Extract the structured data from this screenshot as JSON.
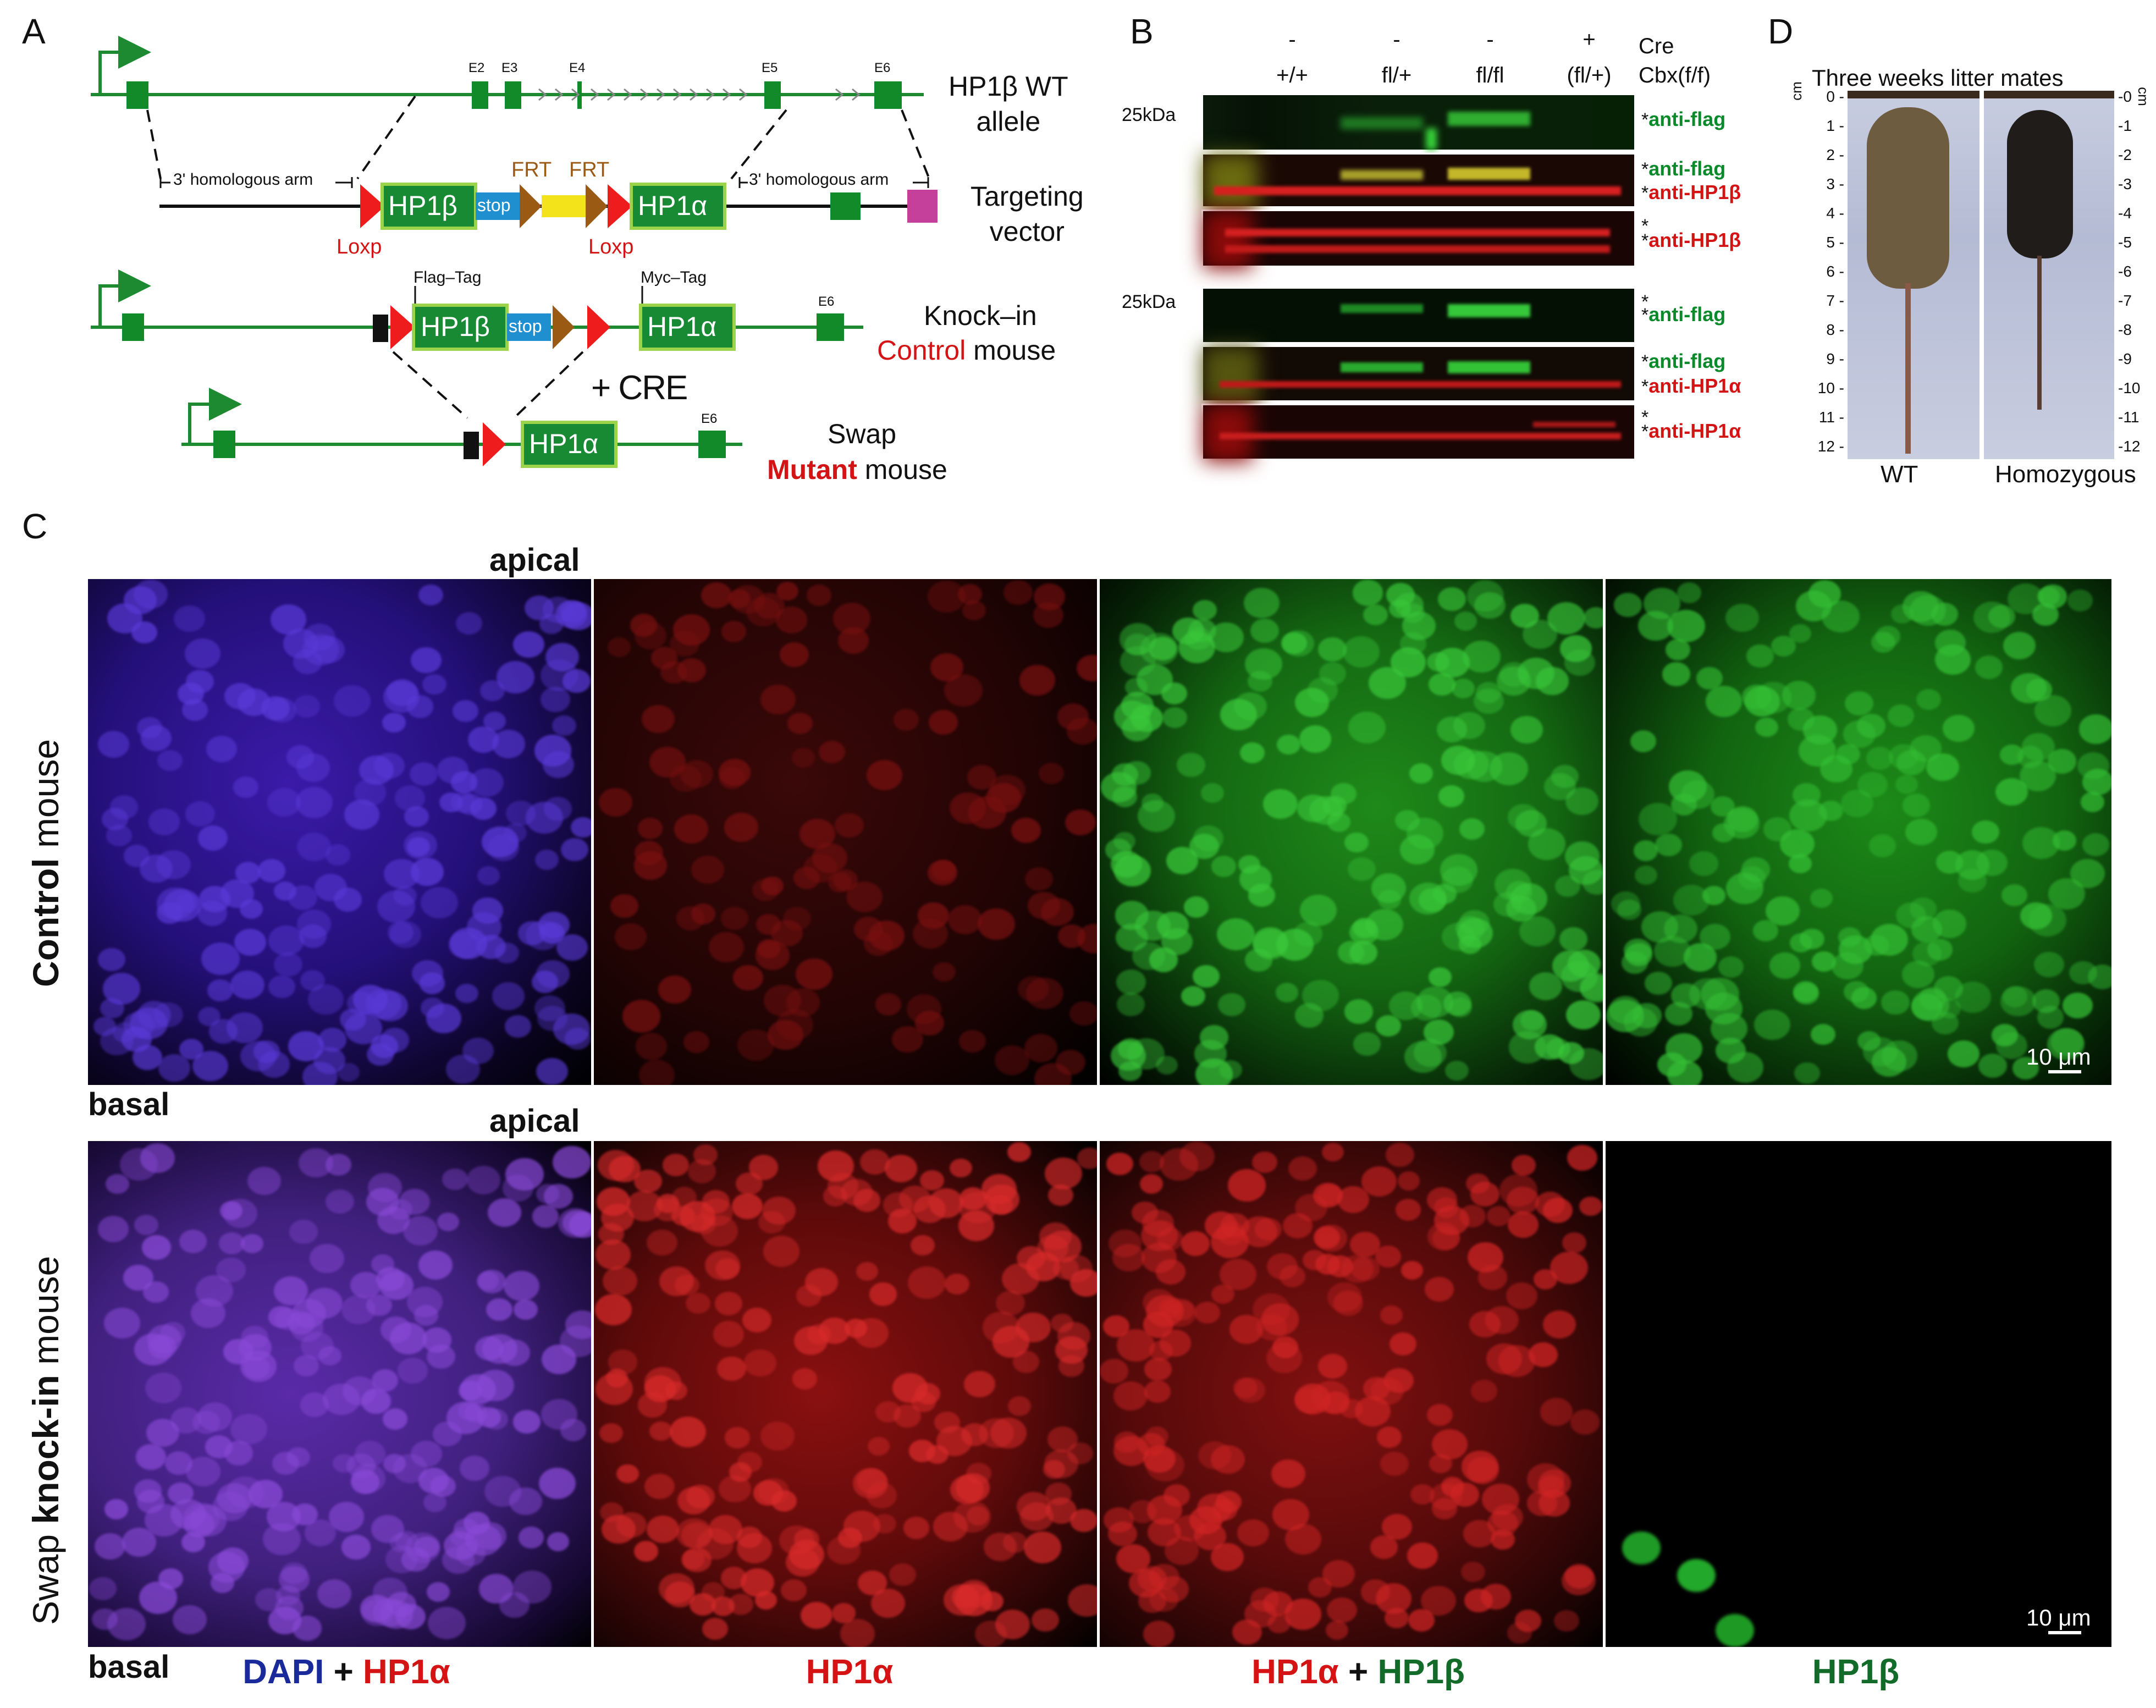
{
  "panel_a": {
    "label": "A",
    "wt_allele": "HP1β WT\nallele",
    "exons": [
      "E2",
      "E3",
      "E4",
      "E5",
      "E6"
    ],
    "homology_left": "3' homologous arm",
    "homology_right": "3' homologous arm",
    "frt1": "FRT",
    "frt2": "FRT",
    "loxp1": "Loxp",
    "loxp2": "Loxp",
    "hp1b": "HP1β",
    "hp1a": "HP1α",
    "stop": "stop",
    "targeting": "Targeting\nvector",
    "flag_tag": "Flag–Tag",
    "myc_tag": "Myc–Tag",
    "e6": "E6",
    "knockin_line1": "Knock–in",
    "control_word": "Control",
    "mouse_word": "mouse",
    "cre": "+ CRE",
    "swap_word": "Swap",
    "mutant_word": "Mutant",
    "colors": {
      "gene": "#1d8a32",
      "exon": "#128a2a",
      "box": "#188a34",
      "stop": "#1f8fd0",
      "loxp": "#ee1c1c",
      "frt": "#9b5a14",
      "neo": "#f2e31a",
      "neg": "#c4409a"
    }
  },
  "panel_b": {
    "label": "B",
    "row_cre": "Cre",
    "row_cbx": "Cbx(f/f)",
    "cre_values": [
      "-",
      "-",
      "-",
      "+"
    ],
    "genotypes": [
      "+/+",
      "fl/+",
      "fl/fl",
      "(fl/+)"
    ],
    "mw1": "25kDa",
    "mw2": "25kDa",
    "star": "*",
    "blots": [
      {
        "labels": [
          {
            "t": "anti-flag",
            "c": "green"
          }
        ]
      },
      {
        "labels": [
          {
            "t": "anti-flag",
            "c": "green"
          },
          {
            "t": "anti-HP1β",
            "c": "red"
          }
        ]
      },
      {
        "labels": [
          {
            "t": "anti-HP1β",
            "c": "red"
          }
        ]
      },
      {
        "labels": [
          {
            "t": "anti-flag",
            "c": "green"
          }
        ]
      },
      {
        "labels": [
          {
            "t": "anti-flag",
            "c": "green"
          },
          {
            "t": "anti-HP1α",
            "c": "red"
          }
        ]
      },
      {
        "labels": [
          {
            "t": "anti-HP1α",
            "c": "red"
          }
        ]
      }
    ]
  },
  "panel_c": {
    "label": "C",
    "apical1": "apical",
    "apical2": "apical",
    "basal1": "basal",
    "basal2": "basal",
    "row1_bold": "Control",
    "row1_rest": " mouse",
    "row2_pre": "Swap ",
    "row2_bold": "knock-in",
    "row2_rest": " mouse",
    "scalebar1": "10 μm",
    "scalebar2": "10 μm",
    "col1_a": "DAPI",
    "col1_plus": " + ",
    "col1_b": "HP1α",
    "col2": "HP1α",
    "col3_a": "HP1α",
    "col3_plus": " + ",
    "col3_b": "HP1β",
    "col4": "HP1β"
  },
  "panel_d": {
    "label": "D",
    "title": "Three weeks litter mates",
    "unit": "cm",
    "ruler": [
      "0",
      "1",
      "2",
      "3",
      "4",
      "5",
      "6",
      "7",
      "8",
      "9",
      "10",
      "11",
      "12"
    ],
    "wt": "WT",
    "homo": "Homozygous"
  }
}
